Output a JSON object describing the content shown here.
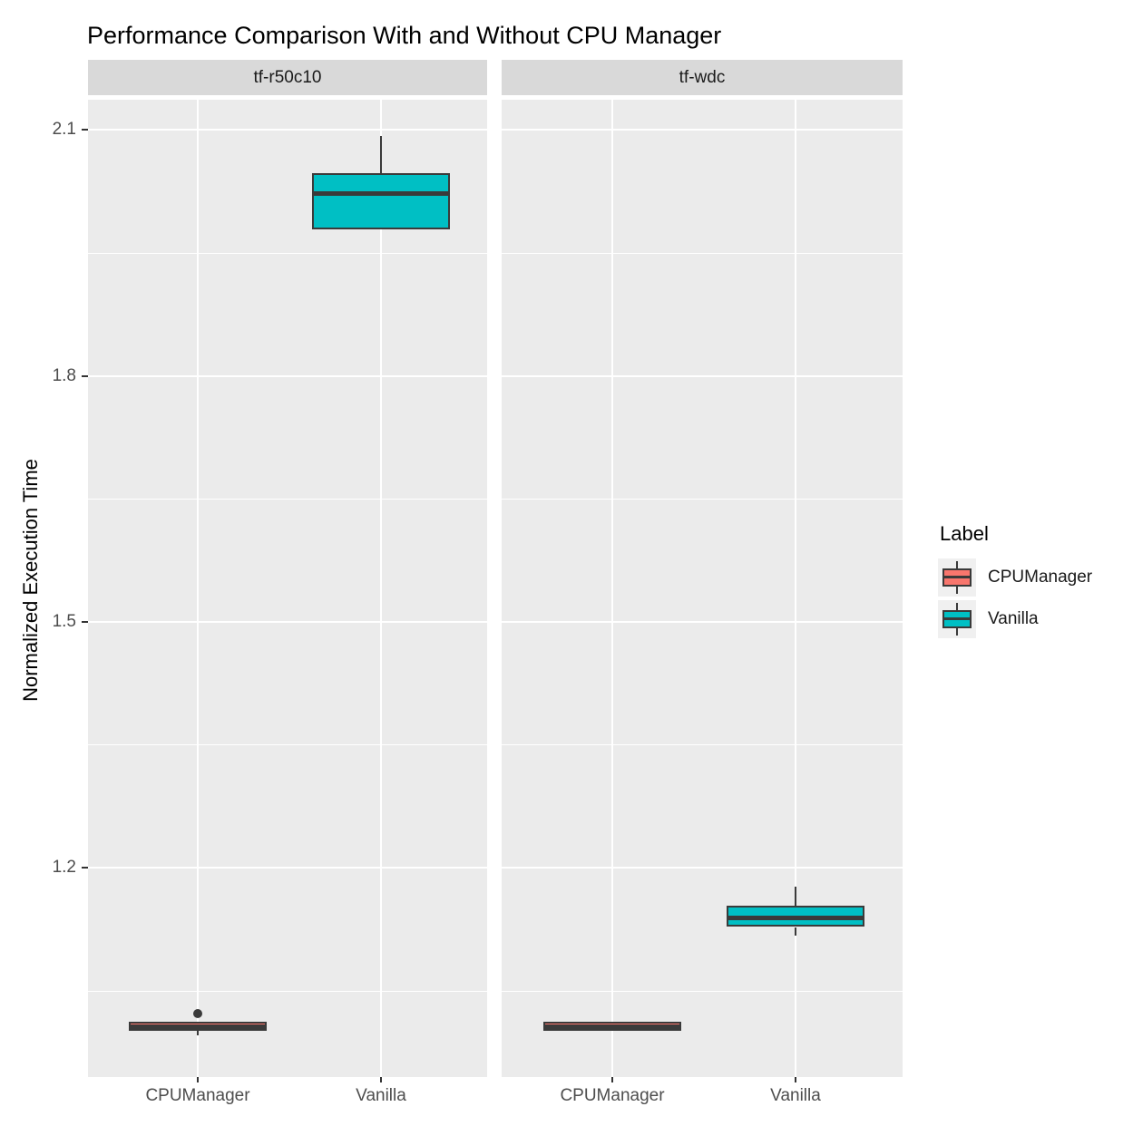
{
  "chart_data": {
    "type": "boxplot",
    "title": "Performance Comparison With and Without CPU Manager",
    "xlabel": "",
    "ylabel": "Normalized Execution Time",
    "grid": "on",
    "panel_background": "#EBEBEB",
    "strip_background": "#D9D9D9",
    "box_outline_color": "#3A3A3A",
    "y_axis": {
      "ticks": [
        2.1,
        1.8,
        1.5,
        1.2
      ],
      "minor_ticks": [
        1.95,
        1.65,
        1.35,
        1.05
      ],
      "range": [
        0.945,
        2.137
      ]
    },
    "legend": {
      "title": "Label",
      "position": "right",
      "entries": [
        {
          "label": "CPUManager",
          "color": "#F8766D"
        },
        {
          "label": "Vanilla",
          "color": "#00BFC4"
        }
      ]
    },
    "facets": [
      {
        "label": "tf-r50c10",
        "boxes": [
          {
            "category": "CPUManager",
            "series": "CPUManager",
            "whisker_low": 0.996,
            "q1": 1.001,
            "median": 1.006,
            "q3": 1.012,
            "whisker_high": 1.012,
            "outliers": [
              1.022
            ]
          },
          {
            "category": "Vanilla",
            "series": "Vanilla",
            "whisker_low": 1.979,
            "q1": 1.979,
            "median": 2.023,
            "q3": 2.047,
            "whisker_high": 2.093,
            "outliers": []
          }
        ]
      },
      {
        "label": "tf-wdc",
        "boxes": [
          {
            "category": "CPUManager",
            "series": "CPUManager",
            "whisker_low": 1.001,
            "q1": 1.001,
            "median": 1.006,
            "q3": 1.012,
            "whisker_high": 1.012,
            "outliers": []
          },
          {
            "category": "Vanilla",
            "series": "Vanilla",
            "whisker_low": 1.117,
            "q1": 1.128,
            "median": 1.139,
            "q3": 1.154,
            "whisker_high": 1.177,
            "outliers": []
          }
        ]
      }
    ]
  }
}
